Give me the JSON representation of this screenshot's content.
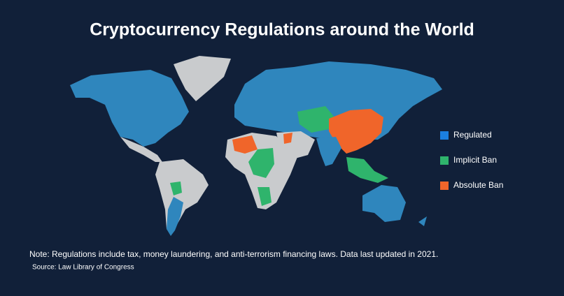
{
  "title": "Cryptocurrency Regulations around the World",
  "legend": [
    {
      "label": "Regulated",
      "color": "#1b7fe0"
    },
    {
      "label": "Implicit Ban",
      "color": "#2fb46c"
    },
    {
      "label": "Absolute Ban",
      "color": "#f0652a"
    }
  ],
  "note": "Note: Regulations include tax, money laundering, and anti-terrorism financing laws. Data last updated in 2021.",
  "source": "Source: Law Library of Congress"
}
